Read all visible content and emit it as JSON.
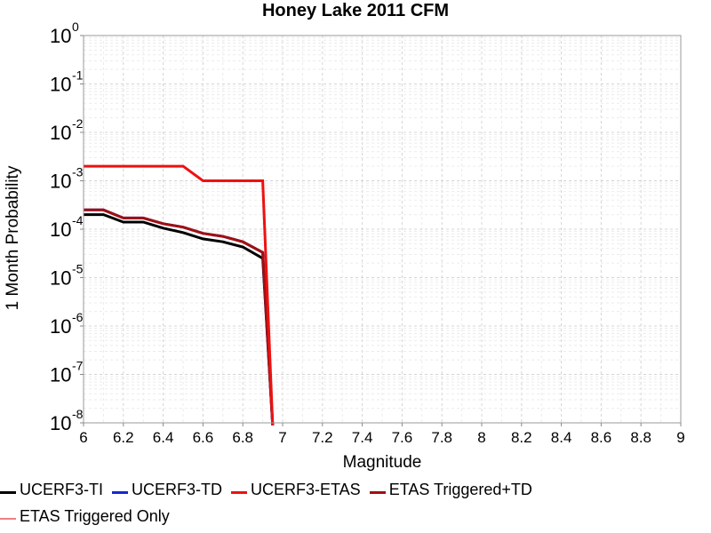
{
  "chart_data": {
    "type": "line",
    "title": "Honey Lake 2011 CFM",
    "xlabel": "Magnitude",
    "ylabel": "1 Month Probability",
    "xlim": [
      6,
      9
    ],
    "ylim": [
      1e-08,
      1
    ],
    "yscale": "log",
    "grid": true,
    "legend_placement": "bottom",
    "x_ticks": [
      "6",
      "6.2",
      "6.4",
      "6.6",
      "6.8",
      "7",
      "7.2",
      "7.4",
      "7.6",
      "7.8",
      "8",
      "8.2",
      "8.4",
      "8.6",
      "8.8",
      "9"
    ],
    "y_ticks": [
      {
        "base": "10",
        "exp": "0"
      },
      {
        "base": "10",
        "exp": "-1"
      },
      {
        "base": "10",
        "exp": "-2"
      },
      {
        "base": "10",
        "exp": "-3"
      },
      {
        "base": "10",
        "exp": "-4"
      },
      {
        "base": "10",
        "exp": "-5"
      },
      {
        "base": "10",
        "exp": "-6"
      },
      {
        "base": "10",
        "exp": "-7"
      },
      {
        "base": "10",
        "exp": "-8"
      }
    ],
    "series": [
      {
        "name": "UCERF3-TI",
        "color": "#000000",
        "x": [
          6.0,
          6.1,
          6.2,
          6.3,
          6.4,
          6.5,
          6.6,
          6.7,
          6.8,
          6.9,
          6.95
        ],
        "y": [
          0.0002,
          0.0002,
          0.00014,
          0.00014,
          0.000105,
          8.5e-05,
          6.3e-05,
          5.5e-05,
          4.3e-05,
          2.5e-05,
          1e-09
        ]
      },
      {
        "name": "UCERF3-TD",
        "color": "#1428d2",
        "x": [
          6.0,
          6.1,
          6.2,
          6.3,
          6.4,
          6.5,
          6.6,
          6.7,
          6.8,
          6.9,
          6.95
        ],
        "y": [
          0.00025,
          0.00025,
          0.00017,
          0.00017,
          0.00013,
          0.00011,
          8.2e-05,
          7.1e-05,
          5.5e-05,
          3.3e-05,
          1e-09
        ]
      },
      {
        "name": "UCERF3-ETAS",
        "color": "#ee1111",
        "x": [
          6.0,
          6.1,
          6.2,
          6.3,
          6.4,
          6.5,
          6.6,
          6.7,
          6.8,
          6.9,
          6.95
        ],
        "y": [
          0.002,
          0.002,
          0.002,
          0.002,
          0.002,
          0.002,
          0.001,
          0.001,
          0.001,
          0.001,
          1e-09
        ]
      },
      {
        "name": "ETAS Triggered+TD",
        "color": "#a01010",
        "x": [
          6.0,
          6.1,
          6.2,
          6.3,
          6.4,
          6.5,
          6.6,
          6.7,
          6.8,
          6.9,
          6.95
        ],
        "y": [
          0.00025,
          0.00025,
          0.00017,
          0.00017,
          0.00013,
          0.00011,
          8.2e-05,
          7.1e-05,
          5.5e-05,
          3.3e-05,
          1e-09
        ]
      },
      {
        "name": "ETAS Triggered Only",
        "color": "#f08080",
        "x": [],
        "y": []
      }
    ]
  }
}
